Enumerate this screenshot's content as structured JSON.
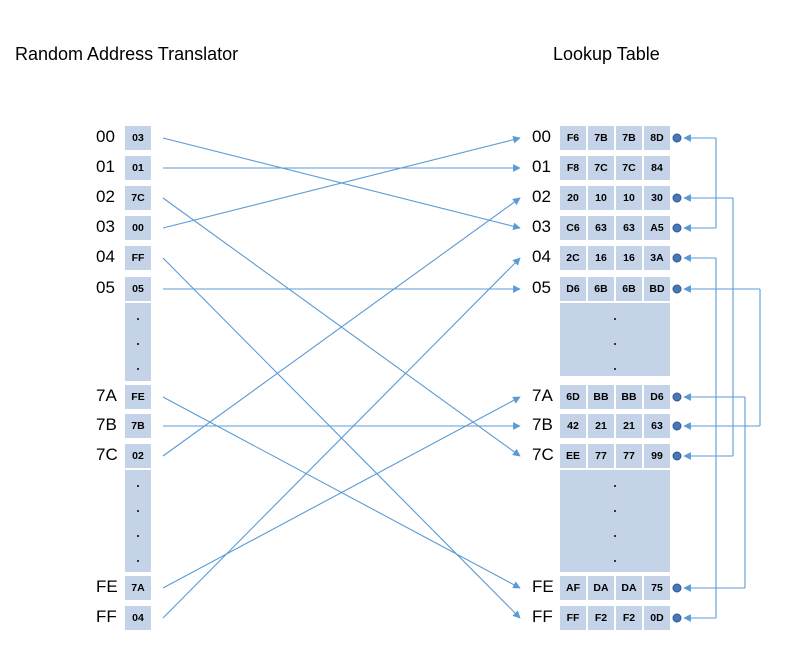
{
  "titles": {
    "left": "Random Address Translator",
    "right": "Lookup Table"
  },
  "translator": {
    "rows": [
      {
        "addr": "00",
        "value": "03"
      },
      {
        "addr": "01",
        "value": "01"
      },
      {
        "addr": "02",
        "value": "7C"
      },
      {
        "addr": "03",
        "value": "00"
      },
      {
        "addr": "04",
        "value": "FF"
      },
      {
        "addr": "05",
        "value": "05"
      },
      {
        "addr": "7A",
        "value": "FE"
      },
      {
        "addr": "7B",
        "value": "7B"
      },
      {
        "addr": "7C",
        "value": "02"
      },
      {
        "addr": "FE",
        "value": "7A"
      },
      {
        "addr": "FF",
        "value": "04"
      }
    ]
  },
  "lookup": {
    "rows": [
      {
        "addr": "00",
        "bytes": [
          "F6",
          "7B",
          "7B",
          "8D"
        ]
      },
      {
        "addr": "01",
        "bytes": [
          "F8",
          "7C",
          "7C",
          "84"
        ]
      },
      {
        "addr": "02",
        "bytes": [
          "20",
          "10",
          "10",
          "30"
        ]
      },
      {
        "addr": "03",
        "bytes": [
          "C6",
          "63",
          "63",
          "A5"
        ]
      },
      {
        "addr": "04",
        "bytes": [
          "2C",
          "16",
          "16",
          "3A"
        ]
      },
      {
        "addr": "05",
        "bytes": [
          "D6",
          "6B",
          "6B",
          "BD"
        ]
      },
      {
        "addr": "7A",
        "bytes": [
          "6D",
          "BB",
          "BB",
          "D6"
        ]
      },
      {
        "addr": "7B",
        "bytes": [
          "42",
          "21",
          "21",
          "63"
        ]
      },
      {
        "addr": "7C",
        "bytes": [
          "EE",
          "77",
          "77",
          "99"
        ]
      },
      {
        "addr": "FE",
        "bytes": [
          "AF",
          "DA",
          "DA",
          "75"
        ]
      },
      {
        "addr": "FF",
        "bytes": [
          "FF",
          "F2",
          "F2",
          "0D"
        ]
      }
    ]
  },
  "colors": {
    "cell_fill": "#c5d3e8",
    "line": "#5b9bd5",
    "connector_fill": "#4a78b3"
  }
}
